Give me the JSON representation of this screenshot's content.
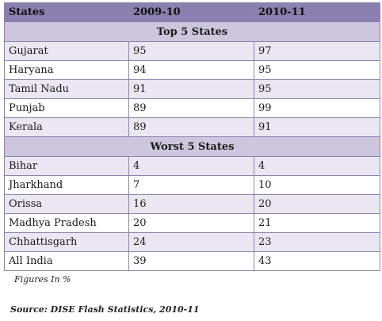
{
  "table": {
    "headers": [
      "States",
      "2009-10",
      "2010-11"
    ],
    "top_section_label": "Top 5 States",
    "top_rows": [
      [
        "Gujarat",
        "95",
        "97"
      ],
      [
        "Haryana",
        "94",
        "95"
      ],
      [
        "Tamil Nadu",
        "91",
        "95"
      ],
      [
        "Punjab",
        "89",
        "99"
      ],
      [
        "Kerala",
        "89",
        "91"
      ]
    ],
    "worst_section_label": "Worst 5 States",
    "worst_rows": [
      [
        "Bihar",
        "4",
        "4"
      ],
      [
        "Jharkhand",
        "7",
        "10"
      ],
      [
        "Orissa",
        "16",
        "20"
      ],
      [
        "Madhya Pradesh",
        "20",
        "21"
      ],
      [
        "Chhattisgarh",
        "24",
        "23"
      ],
      [
        "All India",
        "39",
        "43"
      ]
    ]
  },
  "note": "Figures In %",
  "source": "Source: DISE Flash Statistics, 2010-11",
  "colors": {
    "header_bg": "#8a7fae",
    "section_bg": "#cdc6dd",
    "row_alt_bg": "#ebe7f2",
    "border": "#8e83ad"
  }
}
